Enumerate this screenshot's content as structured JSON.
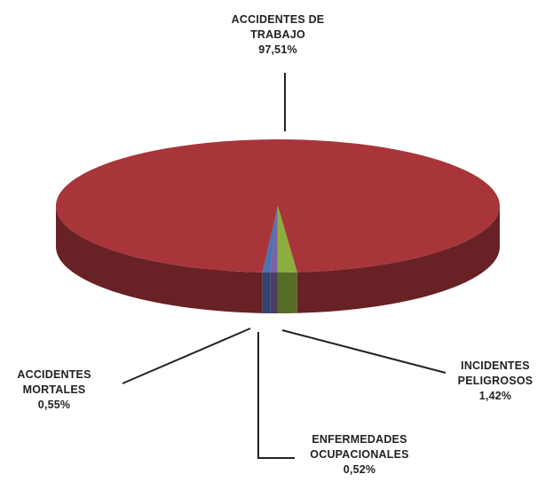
{
  "chart_data": {
    "type": "pie",
    "categories": [
      "ACCIDENTES DE TRABAJO",
      "INCIDENTES PELIGROSOS",
      "ENFERMEDADES OCUPACIONALES",
      "ACCIDENTES MORTALES"
    ],
    "values": [
      97.51,
      1.42,
      0.52,
      0.55
    ],
    "value_labels": [
      "97,51%",
      "1,42%",
      "0,52%",
      "0,55%"
    ],
    "colors": [
      "#a8353a",
      "#8cae3e",
      "#7b62a3",
      "#4d72b5"
    ]
  }
}
